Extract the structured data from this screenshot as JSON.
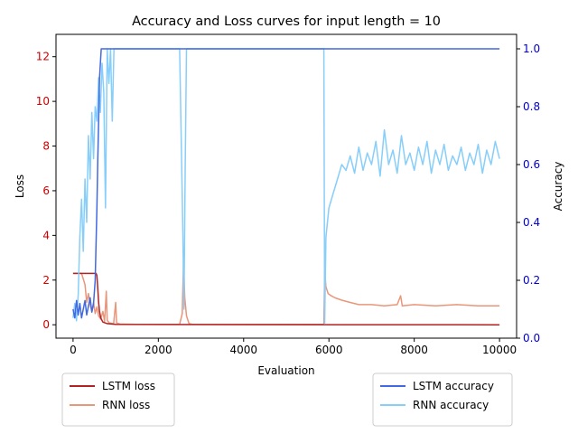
{
  "chart_data": {
    "type": "line",
    "title": "Accuracy and Loss curves for input length = 10",
    "xlabel": "Evaluation",
    "ylabel_left": "Loss",
    "ylabel_right": "Accuracy",
    "xlim": [
      -400,
      10400
    ],
    "ylim_left": [
      -0.6,
      13.0
    ],
    "ylim_right": [
      0.0,
      1.05
    ],
    "x_ticks": [
      0,
      2000,
      4000,
      6000,
      8000,
      10000
    ],
    "y_left_ticks": [
      0,
      2,
      4,
      6,
      8,
      10,
      12
    ],
    "y_right_ticks": [
      0.0,
      0.2,
      0.4,
      0.6,
      0.8,
      1.0
    ],
    "left_tick_color": "#cc0000",
    "right_tick_color": "#0000cc",
    "grid": false,
    "legend_left_placement": "below-left",
    "legend_right_placement": "below-right",
    "series": [
      {
        "name": "LSTM loss",
        "axis": "left",
        "color": "#b22222",
        "points": [
          [
            0,
            2.3
          ],
          [
            540,
            2.3
          ],
          [
            560,
            2.2
          ],
          [
            580,
            1.6
          ],
          [
            600,
            1.0
          ],
          [
            620,
            0.6
          ],
          [
            650,
            0.3
          ],
          [
            700,
            0.12
          ],
          [
            800,
            0.05
          ],
          [
            1000,
            0.02
          ],
          [
            2000,
            0.01
          ],
          [
            10000,
            0.0
          ]
        ]
      },
      {
        "name": "RNN loss",
        "axis": "left",
        "color": "#e9967a",
        "points": [
          [
            0,
            2.3
          ],
          [
            200,
            2.3
          ],
          [
            280,
            1.8
          ],
          [
            320,
            1.0
          ],
          [
            360,
            1.4
          ],
          [
            400,
            0.9
          ],
          [
            440,
            0.6
          ],
          [
            480,
            1.0
          ],
          [
            520,
            0.5
          ],
          [
            560,
            0.8
          ],
          [
            600,
            0.4
          ],
          [
            650,
            0.25
          ],
          [
            700,
            0.6
          ],
          [
            740,
            0.15
          ],
          [
            780,
            1.5
          ],
          [
            800,
            0.2
          ],
          [
            850,
            0.08
          ],
          [
            950,
            0.05
          ],
          [
            1000,
            1.0
          ],
          [
            1020,
            0.08
          ],
          [
            1100,
            0.03
          ],
          [
            1500,
            0.02
          ],
          [
            2500,
            0.02
          ],
          [
            2560,
            0.5
          ],
          [
            2590,
            2.8
          ],
          [
            2620,
            1.2
          ],
          [
            2660,
            0.4
          ],
          [
            2720,
            0.05
          ],
          [
            2800,
            0.02
          ],
          [
            5880,
            0.02
          ],
          [
            5900,
            2.4
          ],
          [
            5930,
            1.7
          ],
          [
            5980,
            1.4
          ],
          [
            6050,
            1.3
          ],
          [
            6150,
            1.2
          ],
          [
            6300,
            1.1
          ],
          [
            6500,
            1.0
          ],
          [
            6700,
            0.9
          ],
          [
            7000,
            0.9
          ],
          [
            7300,
            0.85
          ],
          [
            7600,
            0.9
          ],
          [
            7680,
            1.3
          ],
          [
            7720,
            0.85
          ],
          [
            8000,
            0.9
          ],
          [
            8500,
            0.85
          ],
          [
            9000,
            0.9
          ],
          [
            9500,
            0.85
          ],
          [
            10000,
            0.85
          ]
        ]
      },
      {
        "name": "LSTM accuracy",
        "axis": "right",
        "color": "#4169e1",
        "points": [
          [
            0,
            0.1
          ],
          [
            40,
            0.07
          ],
          [
            80,
            0.13
          ],
          [
            120,
            0.08
          ],
          [
            160,
            0.12
          ],
          [
            200,
            0.07
          ],
          [
            240,
            0.1
          ],
          [
            280,
            0.13
          ],
          [
            320,
            0.08
          ],
          [
            360,
            0.11
          ],
          [
            400,
            0.14
          ],
          [
            440,
            0.09
          ],
          [
            480,
            0.12
          ],
          [
            520,
            0.2
          ],
          [
            560,
            0.45
          ],
          [
            580,
            0.62
          ],
          [
            600,
            0.75
          ],
          [
            620,
            0.9
          ],
          [
            660,
            1.0
          ],
          [
            700,
            1.0
          ],
          [
            2000,
            1.0
          ],
          [
            2600,
            1.0
          ],
          [
            10000,
            1.0
          ]
        ]
      },
      {
        "name": "RNN accuracy",
        "axis": "right",
        "color": "#87cefa",
        "points": [
          [
            0,
            0.07
          ],
          [
            40,
            0.12
          ],
          [
            80,
            0.06
          ],
          [
            120,
            0.15
          ],
          [
            160,
            0.35
          ],
          [
            200,
            0.48
          ],
          [
            240,
            0.3
          ],
          [
            280,
            0.55
          ],
          [
            320,
            0.4
          ],
          [
            360,
            0.7
          ],
          [
            400,
            0.55
          ],
          [
            440,
            0.78
          ],
          [
            480,
            0.62
          ],
          [
            520,
            0.8
          ],
          [
            560,
            0.75
          ],
          [
            600,
            0.9
          ],
          [
            640,
            0.78
          ],
          [
            680,
            0.95
          ],
          [
            720,
            0.85
          ],
          [
            760,
            0.45
          ],
          [
            800,
            1.0
          ],
          [
            840,
            0.88
          ],
          [
            880,
            1.0
          ],
          [
            920,
            0.75
          ],
          [
            960,
            1.0
          ],
          [
            1000,
            1.0
          ],
          [
            1100,
            1.0
          ],
          [
            2500,
            1.0
          ],
          [
            2570,
            0.4
          ],
          [
            2600,
            0.1
          ],
          [
            2630,
            0.6
          ],
          [
            2660,
            1.0
          ],
          [
            2700,
            1.0
          ],
          [
            5880,
            1.0
          ],
          [
            5900,
            0.05
          ],
          [
            5930,
            0.35
          ],
          [
            6000,
            0.45
          ],
          [
            6100,
            0.5
          ],
          [
            6200,
            0.55
          ],
          [
            6300,
            0.6
          ],
          [
            6400,
            0.58
          ],
          [
            6500,
            0.63
          ],
          [
            6600,
            0.57
          ],
          [
            6700,
            0.66
          ],
          [
            6800,
            0.58
          ],
          [
            6900,
            0.64
          ],
          [
            7000,
            0.6
          ],
          [
            7100,
            0.68
          ],
          [
            7200,
            0.56
          ],
          [
            7300,
            0.72
          ],
          [
            7400,
            0.6
          ],
          [
            7500,
            0.65
          ],
          [
            7600,
            0.57
          ],
          [
            7700,
            0.7
          ],
          [
            7800,
            0.6
          ],
          [
            7900,
            0.64
          ],
          [
            8000,
            0.58
          ],
          [
            8100,
            0.66
          ],
          [
            8200,
            0.6
          ],
          [
            8300,
            0.68
          ],
          [
            8400,
            0.57
          ],
          [
            8500,
            0.65
          ],
          [
            8600,
            0.6
          ],
          [
            8700,
            0.67
          ],
          [
            8800,
            0.58
          ],
          [
            8900,
            0.63
          ],
          [
            9000,
            0.6
          ],
          [
            9100,
            0.66
          ],
          [
            9200,
            0.58
          ],
          [
            9300,
            0.64
          ],
          [
            9400,
            0.6
          ],
          [
            9500,
            0.67
          ],
          [
            9600,
            0.57
          ],
          [
            9700,
            0.65
          ],
          [
            9800,
            0.6
          ],
          [
            9900,
            0.68
          ],
          [
            10000,
            0.62
          ]
        ]
      }
    ]
  }
}
